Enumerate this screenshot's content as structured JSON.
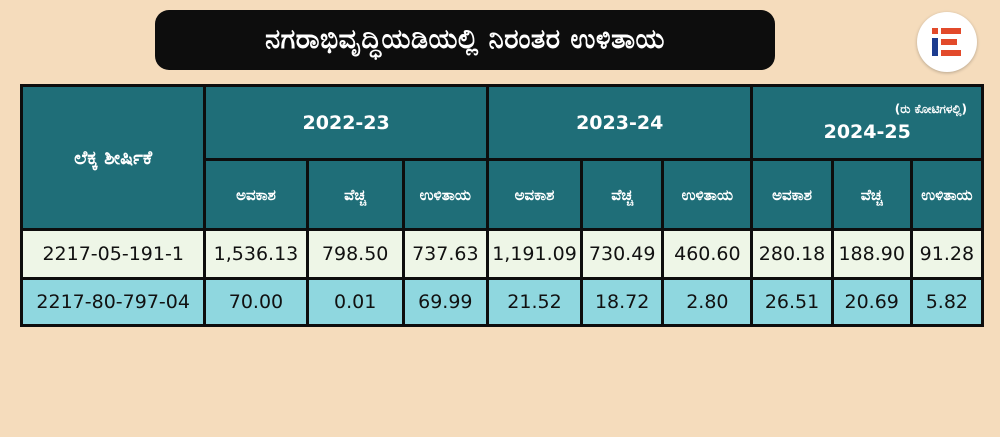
{
  "title": "ನಗರಾಭಿವೃದ್ಧಿಯಡಿಯಲ್ಲಿ ನಿರಂತರ ಉಳಿತಾಯ",
  "colors": {
    "header_bg": "#1f6e78",
    "row1_bg": "#eef6e7",
    "row2_bg": "#8fd7df",
    "page_bg": "#f5dcbc",
    "logo_red": "#e24a2b",
    "logo_blue": "#1d3c8f"
  },
  "logo": {
    "icon": "brand-logo-icon"
  },
  "table": {
    "row_header": "ಲೆಕ್ಕ ಶೀರ್ಷಿಕೆ",
    "unit_note": "(ರು ಕೋಟಿಗಳಲ್ಲಿ)",
    "years": [
      "2022-23",
      "2023-24",
      "2024-25"
    ],
    "sub_headers": [
      "ಅವಕಾಶ",
      "ವೆಚ್ಚ",
      "ಉಳಿತಾಯ"
    ],
    "rows": [
      {
        "head": "2217-05-191-1",
        "cells": [
          "1,536.13",
          "798.50",
          "737.63",
          "1,191.09",
          "730.49",
          "460.60",
          "280.18",
          "188.90",
          "91.28"
        ]
      },
      {
        "head": "2217-80-797-04",
        "cells": [
          "70.00",
          "0.01",
          "69.99",
          "21.52",
          "18.72",
          "2.80",
          "26.51",
          "20.69",
          "5.82"
        ]
      }
    ]
  }
}
